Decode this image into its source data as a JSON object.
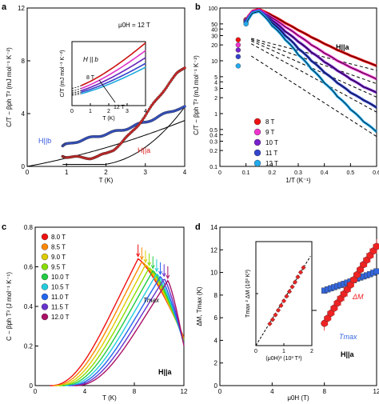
{
  "panels": {
    "a": {
      "letter": "a",
      "field_label": "μ0H = 12 T"
    },
    "b": {
      "letter": "b"
    },
    "c": {
      "letter": "c"
    },
    "d": {
      "letter": "d"
    }
  },
  "chart_data": [
    {
      "panel": "a",
      "type": "scatter",
      "xlabel": "T (K)",
      "ylabel": "C/T − βph T² (mJ mol⁻¹ K⁻²)",
      "xlim": [
        0,
        4
      ],
      "ylim": [
        0,
        12
      ],
      "xticks": [
        0,
        1,
        2,
        3,
        4
      ],
      "yticks": [
        0,
        4,
        8,
        12
      ],
      "annotations": [
        "μ0H = 12 T"
      ],
      "series": [
        {
          "name": "H||b",
          "color": "#3355dd",
          "x": [
            0.9,
            1.0,
            1.2,
            1.4,
            1.6,
            1.8,
            2.0,
            2.2,
            2.4,
            2.6,
            2.8,
            3.0,
            3.2,
            3.4,
            3.6,
            3.8,
            4.0
          ],
          "y": [
            1.55,
            1.65,
            1.85,
            2.0,
            2.15,
            2.3,
            2.45,
            2.6,
            2.75,
            2.95,
            3.15,
            3.35,
            3.6,
            3.85,
            4.1,
            4.35,
            4.5
          ]
        },
        {
          "name": "H||a",
          "color": "#dd2222",
          "x": [
            0.9,
            1.0,
            1.2,
            1.4,
            1.6,
            1.8,
            2.0,
            2.2,
            2.4,
            2.6,
            2.8,
            3.0,
            3.2,
            3.4,
            3.6,
            3.8,
            4.0
          ],
          "y": [
            0.75,
            0.75,
            0.7,
            0.65,
            0.65,
            0.75,
            0.95,
            1.3,
            1.8,
            2.4,
            3.1,
            3.85,
            4.7,
            5.5,
            6.3,
            7.0,
            7.5
          ]
        }
      ],
      "inset": {
        "xlabel": "T (K)",
        "ylabel": "C/T (mJ mol⁻¹ K⁻²)",
        "xlim": [
          0,
          4
        ],
        "ylim": [
          0,
          10
        ],
        "xticks": [
          0,
          1,
          2,
          3,
          4
        ],
        "annotations": [
          "H || b",
          "8 T",
          "12 T"
        ],
        "series": [
          {
            "name": "8 T",
            "color": "#cc1111",
            "x": [
              0.5,
              1.0,
              1.5,
              2.0,
              2.5,
              3.0,
              3.5,
              4.0
            ],
            "y": [
              3.3,
              4.0,
              4.8,
              5.7,
              6.6,
              7.6,
              8.7,
              9.8
            ]
          },
          {
            "name": "9 T",
            "color": "#dd33cc",
            "x": [
              0.5,
              1.0,
              1.5,
              2.0,
              2.5,
              3.0,
              3.5,
              4.0
            ],
            "y": [
              2.9,
              3.5,
              4.2,
              5.0,
              5.8,
              6.7,
              7.6,
              8.6
            ]
          },
          {
            "name": "10 T",
            "color": "#6622bb",
            "x": [
              0.5,
              1.0,
              1.5,
              2.0,
              2.5,
              3.0,
              3.5,
              4.0
            ],
            "y": [
              2.6,
              3.1,
              3.7,
              4.4,
              5.1,
              5.8,
              6.6,
              7.5
            ]
          },
          {
            "name": "11 T",
            "color": "#3344cc",
            "x": [
              0.5,
              1.0,
              1.5,
              2.0,
              2.5,
              3.0,
              3.5,
              4.0
            ],
            "y": [
              2.4,
              2.8,
              3.3,
              3.9,
              4.5,
              5.2,
              5.9,
              6.6
            ]
          },
          {
            "name": "12 T",
            "color": "#22aadd",
            "x": [
              0.5,
              1.0,
              1.5,
              2.0,
              2.5,
              3.0,
              3.5,
              4.0
            ],
            "y": [
              2.2,
              2.6,
              3.0,
              3.5,
              4.0,
              4.6,
              5.3,
              6.0
            ]
          }
        ]
      }
    },
    {
      "panel": "b",
      "type": "scatter",
      "xlabel": "1/T (K⁻¹)",
      "ylabel": "C/T − βph T² (mJ mol⁻¹ K⁻²)",
      "xlim": [
        0,
        0.6
      ],
      "ylim": [
        0.1,
        100
      ],
      "log_y": true,
      "xticks": [
        0,
        0.1,
        0.2,
        0.3,
        0.4,
        0.5,
        0.6
      ],
      "yticks": [
        0.1,
        0.2,
        0.3,
        0.4,
        0.5,
        1,
        2,
        3,
        4,
        5,
        10,
        20,
        30,
        40,
        50,
        100
      ],
      "annotations": [
        "H||a"
      ],
      "legend": "bottom-left",
      "series": [
        {
          "name": "8 T",
          "color": "#ee1111",
          "x": [
            0.07,
            0.1,
            0.125,
            0.15,
            0.2,
            0.25,
            0.3,
            0.35,
            0.4,
            0.45,
            0.5,
            0.55,
            0.6
          ],
          "y": [
            25,
            60,
            88,
            95,
            72,
            52,
            38,
            28,
            21,
            16,
            12.5,
            10,
            8
          ]
        },
        {
          "name": "9 T",
          "color": "#ee33cc",
          "x": [
            0.07,
            0.1,
            0.125,
            0.15,
            0.2,
            0.25,
            0.3,
            0.35,
            0.4,
            0.45,
            0.5,
            0.55,
            0.6
          ],
          "y": [
            20,
            58,
            86,
            92,
            65,
            44,
            30,
            20,
            14,
            10,
            7.5,
            5.8,
            4.5
          ]
        },
        {
          "name": "10 T",
          "color": "#7722cc",
          "x": [
            0.07,
            0.1,
            0.125,
            0.15,
            0.2,
            0.25,
            0.3,
            0.35,
            0.4,
            0.45,
            0.5,
            0.55,
            0.6
          ],
          "y": [
            16,
            56,
            84,
            90,
            58,
            36,
            23,
            14.5,
            9.5,
            6.5,
            4.5,
            3.2,
            2.5
          ]
        },
        {
          "name": "11 T",
          "color": "#3344cc",
          "x": [
            0.07,
            0.1,
            0.125,
            0.15,
            0.2,
            0.25,
            0.3,
            0.35,
            0.4,
            0.45,
            0.5,
            0.55,
            0.6
          ],
          "y": [
            12,
            54,
            82,
            88,
            52,
            30,
            17,
            10,
            6,
            3.8,
            2.5,
            1.8,
            1.3
          ]
        },
        {
          "name": "12 T",
          "color": "#22aaee",
          "x": [
            0.07,
            0.1,
            0.125,
            0.15,
            0.2,
            0.25,
            0.3,
            0.35,
            0.4,
            0.45,
            0.5,
            0.55,
            0.6
          ],
          "y": [
            8,
            50,
            80,
            86,
            46,
            25,
            13,
            7,
            3.8,
            2.1,
            1.2,
            0.7,
            0.45
          ]
        }
      ]
    },
    {
      "panel": "c",
      "type": "line",
      "xlabel": "T (K)",
      "ylabel": "C − βph T³ (J mol⁻¹ K⁻¹)",
      "xlim": [
        0,
        12
      ],
      "ylim": [
        0,
        0.8
      ],
      "xticks": [
        0,
        4,
        8,
        12
      ],
      "yticks": [
        0,
        0.2,
        0.4,
        0.6,
        0.8
      ],
      "annotations": [
        "Tmax",
        "H||a"
      ],
      "legend": "top-left",
      "series": [
        {
          "name": "8.0 T",
          "color": "#ee1111",
          "peak_T": 8.3,
          "peak_C": 0.64
        },
        {
          "name": "8.5 T",
          "color": "#ff8800",
          "peak_T": 8.6,
          "peak_C": 0.625
        },
        {
          "name": "9.0 T",
          "color": "#ddcc00",
          "peak_T": 8.9,
          "peak_C": 0.61
        },
        {
          "name": "9.5 T",
          "color": "#88dd00",
          "peak_T": 9.2,
          "peak_C": 0.595
        },
        {
          "name": "10.0 T",
          "color": "#22cc44",
          "peak_T": 9.5,
          "peak_C": 0.58
        },
        {
          "name": "10.5 T",
          "color": "#22ccdd",
          "peak_T": 9.8,
          "peak_C": 0.565
        },
        {
          "name": "11.0 T",
          "color": "#2266ee",
          "peak_T": 10.1,
          "peak_C": 0.55
        },
        {
          "name": "11.5 T",
          "color": "#6633cc",
          "peak_T": 10.4,
          "peak_C": 0.54
        },
        {
          "name": "12.0 T",
          "color": "#aa1166",
          "peak_T": 10.7,
          "peak_C": 0.53
        }
      ]
    },
    {
      "panel": "d",
      "type": "scatter",
      "xlabel": "μ0H (T)",
      "ylabel": "ΔM, Tmax (K)",
      "xlim": [
        0,
        12
      ],
      "ylim": [
        0,
        14
      ],
      "xticks": [
        0,
        4,
        8,
        12
      ],
      "yticks": [
        0,
        2,
        4,
        6,
        8,
        10,
        12,
        14
      ],
      "annotations": [
        "ΔM",
        "Tmax",
        "H||a"
      ],
      "series": [
        {
          "name": "ΔM",
          "color": "#ee2222",
          "x": [
            8.0,
            8.5,
            9.0,
            9.5,
            10.0,
            10.5,
            11.0,
            11.5,
            12.0
          ],
          "y": [
            5.5,
            6.4,
            7.3,
            8.1,
            8.9,
            9.8,
            10.7,
            11.5,
            12.3
          ]
        },
        {
          "name": "Tmax",
          "color": "#3366dd",
          "x": [
            8.0,
            8.5,
            9.0,
            9.5,
            10.0,
            10.5,
            11.0,
            11.5,
            12.0
          ],
          "y": [
            8.4,
            8.6,
            8.8,
            9.0,
            9.2,
            9.45,
            9.65,
            9.85,
            10.1
          ]
        }
      ],
      "inset": {
        "xlabel": "(μ0H)³ (10³ T³)",
        "ylabel": "Tmax ² ΔM (10³ K³)",
        "xlim": [
          0,
          2
        ],
        "ylim": [
          0,
          2
        ],
        "xticks": [
          0,
          1,
          2
        ],
        "yticks": [
          0,
          1,
          2
        ],
        "x": [
          0.5,
          0.6,
          0.7,
          0.8,
          0.9,
          1.0,
          1.1,
          1.2,
          1.3,
          1.4,
          1.5,
          1.6,
          1.7
        ],
        "y": [
          0.42,
          0.5,
          0.59,
          0.68,
          0.77,
          0.86,
          0.95,
          1.04,
          1.13,
          1.22,
          1.32,
          1.41,
          1.5
        ]
      }
    }
  ]
}
